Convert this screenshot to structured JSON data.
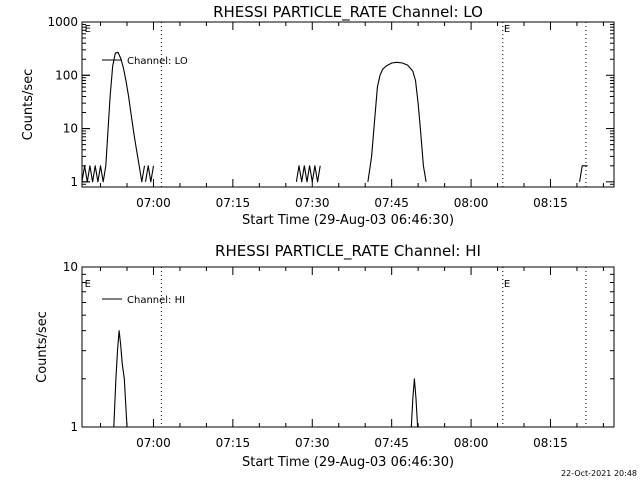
{
  "footer": {
    "timestamp": "22-Oct-2021 20:48"
  },
  "chart_data": [
    {
      "type": "line",
      "title": "RHESSI  PARTICLE_RATE  Channel:  LO",
      "xlabel": "Start Time (29-Aug-03 06:46:30)",
      "ylabel": "Counts/sec",
      "legend": {
        "label": "Channel:  LO",
        "placement": "top-left"
      },
      "x_unit": "minutes since 06:46:30",
      "xlim": [
        0,
        100.5
      ],
      "yscale": "log",
      "ylim": [
        0.8,
        1000
      ],
      "x_ticks": [
        {
          "t": 13.5,
          "label": "07:00"
        },
        {
          "t": 28.5,
          "label": "07:15"
        },
        {
          "t": 43.5,
          "label": "07:30"
        },
        {
          "t": 58.5,
          "label": "07:45"
        },
        {
          "t": 73.5,
          "label": "08:00"
        },
        {
          "t": 88.5,
          "label": "08:15"
        }
      ],
      "y_ticks": [
        {
          "v": 1,
          "label": "1"
        },
        {
          "v": 10,
          "label": "10"
        },
        {
          "v": 100,
          "label": "100"
        },
        {
          "v": 1000,
          "label": "1000"
        }
      ],
      "event_lines": [
        {
          "t": 15.0,
          "label": ""
        },
        {
          "t": 79.5,
          "label": "E"
        },
        {
          "t": 95.2,
          "label": ""
        }
      ],
      "event_markers": [
        {
          "t": 0.3,
          "label": "E"
        },
        {
          "t": 79.5,
          "label": "E"
        }
      ],
      "series": [
        {
          "name": "Channel:  LO",
          "segments": [
            {
              "x": [
                0.0,
                0.5,
                1.0,
                1.5,
                2.0,
                2.5,
                3.0,
                3.5,
                4.0,
                4.5
              ],
              "y": [
                1,
                2,
                1,
                2,
                1,
                2,
                1,
                2,
                1,
                2
              ]
            },
            {
              "x": [
                4.5,
                5.3,
                5.8,
                6.3,
                6.8,
                7.3,
                7.8,
                8.3,
                8.8,
                9.3,
                9.8,
                10.3,
                10.8,
                11.3,
                11.8
              ],
              "y": [
                2,
                40,
                150,
                260,
                270,
                210,
                140,
                80,
                40,
                18,
                8,
                4,
                2,
                1,
                2
              ]
            },
            {
              "x": [
                12.0,
                12.5,
                13.0,
                13.5
              ],
              "y": [
                1,
                2,
                1,
                2
              ]
            },
            {
              "x": [
                40.5,
                41.0,
                41.5,
                42.0,
                42.5,
                43.0,
                43.5,
                44.0,
                44.5,
                45.0
              ],
              "y": [
                1,
                2,
                1,
                2,
                1,
                2,
                1,
                2,
                1,
                2
              ]
            },
            {
              "x": [
                54.0,
                54.7,
                55.3,
                55.8,
                56.3,
                56.8,
                57.5,
                58.5,
                59.5,
                60.5,
                61.5,
                62.5,
                63.0,
                63.5,
                64.0,
                64.5,
                65.0
              ],
              "y": [
                1,
                3,
                15,
                60,
                100,
                130,
                150,
                170,
                175,
                170,
                155,
                120,
                80,
                30,
                8,
                2,
                1
              ]
            },
            {
              "x": [
                94.0,
                94.5,
                95.0,
                95.5
              ],
              "y": [
                1,
                2,
                2,
                2
              ]
            }
          ]
        }
      ]
    },
    {
      "type": "line",
      "title": "RHESSI  PARTICLE_RATE  Channel:  HI",
      "xlabel": "Start Time (29-Aug-03 06:46:30)",
      "ylabel": "Counts/sec",
      "legend": {
        "label": "Channel:  HI",
        "placement": "top-left"
      },
      "x_unit": "minutes since 06:46:30",
      "xlim": [
        0,
        100.5
      ],
      "yscale": "log",
      "ylim": [
        1,
        10
      ],
      "x_ticks": [
        {
          "t": 13.5,
          "label": "07:00"
        },
        {
          "t": 28.5,
          "label": "07:15"
        },
        {
          "t": 43.5,
          "label": "07:30"
        },
        {
          "t": 58.5,
          "label": "07:45"
        },
        {
          "t": 73.5,
          "label": "08:00"
        },
        {
          "t": 88.5,
          "label": "08:15"
        }
      ],
      "y_ticks": [
        {
          "v": 1,
          "label": "1"
        },
        {
          "v": 10,
          "label": "10"
        }
      ],
      "event_lines": [
        {
          "t": 15.0,
          "label": ""
        },
        {
          "t": 79.5,
          "label": "E"
        },
        {
          "t": 95.2,
          "label": ""
        }
      ],
      "event_markers": [
        {
          "t": 0.3,
          "label": "E"
        },
        {
          "t": 79.5,
          "label": "E"
        }
      ],
      "series": [
        {
          "name": "Channel:  HI",
          "segments": [
            {
              "x": [
                5.5,
                6.0,
                6.4,
                6.7,
                7.0,
                7.3,
                7.6,
                8.0,
                8.5,
                9.0
              ],
              "y": [
                1,
                1,
                2,
                3,
                4,
                3.3,
                2.5,
                2,
                1,
                1
              ]
            },
            {
              "x": [
                62.2,
                62.5,
                62.8,
                63.1,
                63.4
              ],
              "y": [
                1,
                1.5,
                2,
                1.5,
                1
              ]
            }
          ]
        }
      ]
    }
  ]
}
